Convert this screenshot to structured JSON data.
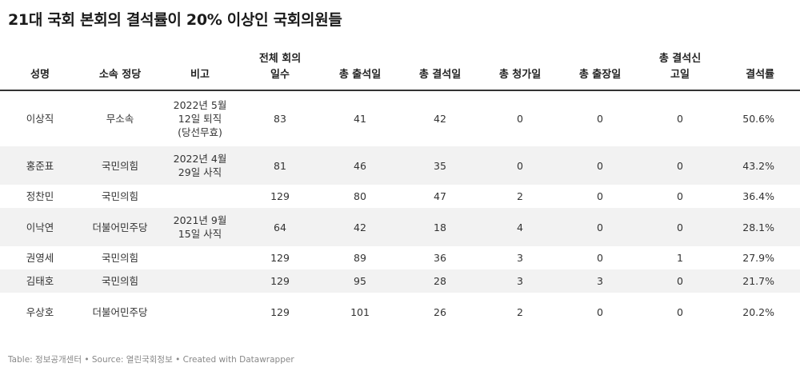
{
  "title": "21대 국회 본회의 결석률이 20% 이상인 국회의원들",
  "table": {
    "headers": [
      "성명",
      "소속 정당",
      "비고",
      "전체 회의 일수",
      "총 출석일",
      "총 결석일",
      "총 청가일",
      "총 출장일",
      "총 결석신 고일",
      "결석률"
    ],
    "rows": [
      [
        "이상직",
        "무소속",
        "2022년 5월 12일 퇴직 (당선무효)",
        "83",
        "41",
        "42",
        "0",
        "0",
        "0",
        "50.6%"
      ],
      [
        "홍준표",
        "국민의힘",
        "2022년 4월 29일 사직",
        "81",
        "46",
        "35",
        "0",
        "0",
        "0",
        "43.2%"
      ],
      [
        "정찬민",
        "국민의힘",
        "",
        "129",
        "80",
        "47",
        "2",
        "0",
        "0",
        "36.4%"
      ],
      [
        "이낙연",
        "더불어민주당",
        "2021년 9월 15일 사직",
        "64",
        "42",
        "18",
        "4",
        "0",
        "0",
        "28.1%"
      ],
      [
        "권영세",
        "국민의힘",
        "",
        "129",
        "89",
        "36",
        "3",
        "0",
        "1",
        "27.9%"
      ],
      [
        "김태호",
        "국민의힘",
        "",
        "129",
        "95",
        "28",
        "3",
        "3",
        "0",
        "21.7%"
      ],
      [
        "우상호",
        "더불어민주당",
        "",
        "129",
        "101",
        "26",
        "2",
        "0",
        "0",
        "20.2%"
      ]
    ]
  },
  "footer": {
    "text": "Table: 정보공개센터 • Source: 열린국회정보 • Created with Datawrapper"
  },
  "colors": {
    "header_rule": "#333333",
    "shaded_row": "#f2f2f2",
    "footer_text": "#888888"
  }
}
